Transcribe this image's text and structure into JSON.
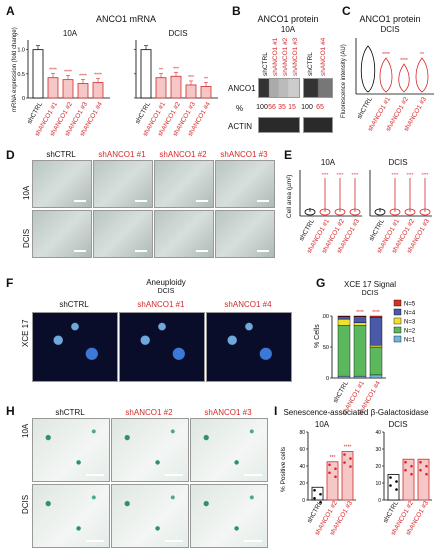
{
  "panels": {
    "A": "A",
    "B": "B",
    "C": "C",
    "D": "D",
    "E": "E",
    "F": "F",
    "G": "G",
    "H": "H",
    "I": "I"
  },
  "a": {
    "title": "ANCO1 mRNA",
    "ylabel": "mRNA expression (fold change)",
    "sub1": "10A",
    "sub2": "DCIS",
    "cats": [
      "shCTRL",
      "shANCO1 #1",
      "shANCO1 #2",
      "shANCO1 #3",
      "shANCO1 #4"
    ],
    "vals10A": [
      1.0,
      0.42,
      0.38,
      0.3,
      0.32
    ],
    "valsDCIS": [
      1.0,
      0.42,
      0.45,
      0.27,
      0.24
    ],
    "sig": [
      "",
      "****",
      "****",
      "****",
      "****"
    ],
    "sigD": [
      "",
      "**",
      "***",
      "***",
      "**"
    ],
    "yticks": [
      "0",
      "0.5",
      "1.0"
    ]
  },
  "b": {
    "title": "ANCO1 protein",
    "sub": "10A",
    "lanes": [
      "shCTRL",
      "shANCO1 #1",
      "shANCO1 #2",
      "shANCO1 #3",
      "shCTRL",
      "shANCO1 #4"
    ],
    "row1": "ANCO1",
    "row2": "ACTIN",
    "pct_label": "%",
    "pct": [
      "100",
      "56",
      "35",
      "15",
      "100",
      "65"
    ]
  },
  "c": {
    "title": "ANCO1 protein",
    "sub": "DCIS",
    "ylabel": "Fluorescence intensity (AU)",
    "cats": [
      "shCTRL",
      "shANCO1 #1",
      "shANCO1 #2",
      "shANCO1 #3"
    ],
    "sig": [
      "",
      "****",
      "****",
      "**"
    ]
  },
  "d": {
    "cols": [
      "shCTRL",
      "shANCO1 #1",
      "shANCO1 #2",
      "shANCO1 #3"
    ],
    "rows": [
      "10A",
      "DCIS"
    ]
  },
  "e": {
    "ylabel": "Cell area (µm²)",
    "sub1": "10A",
    "sub2": "DCIS",
    "cats": [
      "shCTRL",
      "shANCO1 #1",
      "shANCO1 #2",
      "shANCO1 #3"
    ],
    "sig": [
      "",
      "****",
      "****",
      "****"
    ]
  },
  "f": {
    "title": "Aneuploidy",
    "sub": "DCIS",
    "cols": [
      "shCTRL",
      "shANCO1 #1",
      "shANCO1 #4"
    ],
    "row": "XCE 17"
  },
  "g": {
    "title": "XCE 17 Signal",
    "sub": "DCIS",
    "ylabel": "% Cells",
    "yticks": [
      "0",
      "50",
      "100"
    ],
    "cats": [
      "shCTRL",
      "shANCO1 #1",
      "shANCO1 #4"
    ],
    "sig": [
      "",
      "****",
      "****"
    ],
    "legend": [
      {
        "name": "N=5",
        "color": "#d73027"
      },
      {
        "name": "N=4",
        "color": "#4a5aa8"
      },
      {
        "name": "N=3",
        "color": "#f2e12a"
      },
      {
        "name": "N=2",
        "color": "#5cb85c"
      },
      {
        "name": "N=1",
        "color": "#6fb7e0"
      }
    ]
  },
  "chart_data": [
    {
      "type": "bar",
      "title": "ANCO1 mRNA",
      "subtitle": "10A",
      "categories": [
        "shCTRL",
        "shANCO1 #1",
        "shANCO1 #2",
        "shANCO1 #3",
        "shANCO1 #4"
      ],
      "values": [
        1.0,
        0.42,
        0.38,
        0.3,
        0.32
      ],
      "ylabel": "mRNA expression (fold change)",
      "ylim": [
        0,
        1.2
      ]
    },
    {
      "type": "bar",
      "title": "ANCO1 mRNA",
      "subtitle": "DCIS",
      "categories": [
        "shCTRL",
        "shANCO1 #1",
        "shANCO1 #2",
        "shANCO1 #3",
        "shANCO1 #4"
      ],
      "values": [
        1.0,
        0.42,
        0.45,
        0.27,
        0.24
      ],
      "ylim": [
        0,
        1.2
      ]
    },
    {
      "type": "bar",
      "title": "XCE 17 Signal",
      "subtitle": "DCIS",
      "categories": [
        "shCTRL",
        "shANCO1 #1",
        "shANCO1 #4"
      ],
      "series": [
        {
          "name": "N=1",
          "values": [
            3,
            3,
            5
          ]
        },
        {
          "name": "N=2",
          "values": [
            82,
            82,
            45
          ]
        },
        {
          "name": "N=3",
          "values": [
            10,
            4,
            3
          ]
        },
        {
          "name": "N=4",
          "values": [
            4,
            10,
            45
          ]
        },
        {
          "name": "N=5",
          "values": [
            1,
            1,
            2
          ]
        }
      ],
      "ylabel": "% Cells",
      "ylim": [
        0,
        100
      ]
    },
    {
      "type": "bar",
      "title": "Senescence-associated β-Galactosidase",
      "subtitle": "10A",
      "categories": [
        "shCTRL",
        "shANCO1 #2",
        "shANCO1 #3"
      ],
      "values": [
        15,
        45,
        57
      ],
      "ylabel": "% Positive cells",
      "ylim": [
        0,
        80
      ]
    },
    {
      "type": "bar",
      "title": "Senescence-associated β-Galactosidase",
      "subtitle": "DCIS",
      "categories": [
        "shCTRL",
        "shANCO1 #2",
        "shANCO1 #3"
      ],
      "values": [
        15,
        24,
        24
      ],
      "ylim": [
        0,
        40
      ]
    }
  ],
  "h": {
    "cols": [
      "shCTRL",
      "shANCO1 #2",
      "shANCO1 #3"
    ],
    "rows": [
      "10A",
      "DCIS"
    ]
  },
  "i": {
    "title": "Senescence-associated β-Galactosidase",
    "sub1": "10A",
    "sub2": "DCIS",
    "ylabel": "% Positive cells",
    "yticks1": [
      "0",
      "20",
      "40",
      "60",
      "80"
    ],
    "yticks2": [
      "0",
      "10",
      "20",
      "30",
      "40"
    ],
    "cats": [
      "shCTRL",
      "shANCO1 #2",
      "shANCO1 #3"
    ],
    "sig1": [
      "",
      "***",
      "****"
    ]
  },
  "colors": {
    "red": "#d62828",
    "bar_fill": "#f6c7c7",
    "bar_stroke": "#d62828"
  }
}
